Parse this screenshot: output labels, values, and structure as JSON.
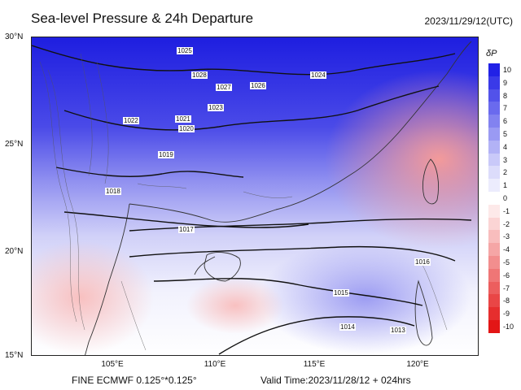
{
  "title": "Sea-level Pressure & 24h Departure",
  "time_label": "2023/11/29/12(UTC)",
  "footer": {
    "model": "FINE ECMWF 0.125°*0.125°",
    "valid": "Valid Time:2023/11/28/12 + 024hrs"
  },
  "axes": {
    "lat_labels": [
      "30°N",
      "25°N",
      "20°N",
      "15°N"
    ],
    "lon_labels": [
      "105°E",
      "110°E",
      "115°E",
      "120°E"
    ]
  },
  "colorbar": {
    "title": "δP",
    "levels": [
      "10",
      "9",
      "8",
      "7",
      "6",
      "5",
      "4",
      "3",
      "2",
      "1",
      "0",
      "-1",
      "-2",
      "-3",
      "-4",
      "-5",
      "-6",
      "-7",
      "-8",
      "-9",
      "-10"
    ],
    "colors": [
      "#2121e6",
      "#3a3ae8",
      "#5252ea",
      "#6a6aee",
      "#8282f0",
      "#9a9af3",
      "#b2b2f6",
      "#c9c9f9",
      "#dcdcfb",
      "#ececfd",
      "#ffffff",
      "#fde9e9",
      "#fbd4d4",
      "#f8bdbd",
      "#f5a6a6",
      "#f28e8e",
      "#ef7676",
      "#ec5e5e",
      "#e94646",
      "#e62e2e",
      "#e31616"
    ]
  },
  "isobar_labels": [
    "1025",
    "1024",
    "1026",
    "1027",
    "1028",
    "1023",
    "1022",
    "1021",
    "1020",
    "1019",
    "1018",
    "1017",
    "1016",
    "1015",
    "1014",
    "1013"
  ],
  "shading": {
    "high_pressure_color": "#2020e0",
    "rise_color": "#8a8aee",
    "fall_color": "#f3a0a0",
    "land_outline": "#333333"
  }
}
